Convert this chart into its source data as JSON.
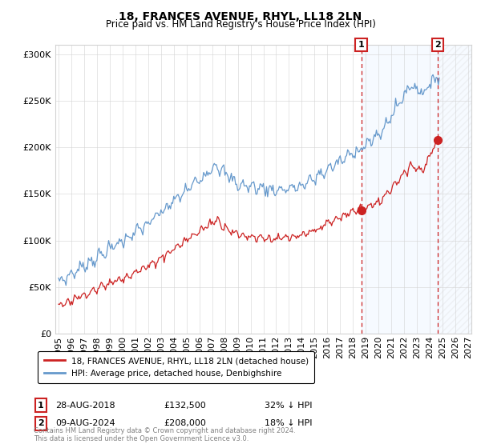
{
  "title": "18, FRANCES AVENUE, RHYL, LL18 2LN",
  "subtitle": "Price paid vs. HM Land Registry's House Price Index (HPI)",
  "legend_line1": "18, FRANCES AVENUE, RHYL, LL18 2LN (detached house)",
  "legend_line2": "HPI: Average price, detached house, Denbighshire",
  "annotation1_label": "1",
  "annotation1_date": "28-AUG-2018",
  "annotation1_price": "£132,500",
  "annotation1_hpi": "32% ↓ HPI",
  "annotation1_year": 2018.65,
  "annotation1_value": 132500,
  "annotation2_label": "2",
  "annotation2_date": "09-AUG-2024",
  "annotation2_price": "£208,000",
  "annotation2_hpi": "18% ↓ HPI",
  "annotation2_year": 2024.61,
  "annotation2_value": 208000,
  "red_line_color": "#cc2222",
  "blue_line_color": "#6699cc",
  "annotation_color": "#cc2222",
  "dashed_line_color": "#cc2222",
  "shaded_region_color": "#ddeeff",
  "footer": "Contains HM Land Registry data © Crown copyright and database right 2024.\nThis data is licensed under the Open Government Licence v3.0.",
  "ylim": [
    0,
    310000
  ],
  "xlim_start": 1994.75,
  "xlim_end": 2027.25
}
